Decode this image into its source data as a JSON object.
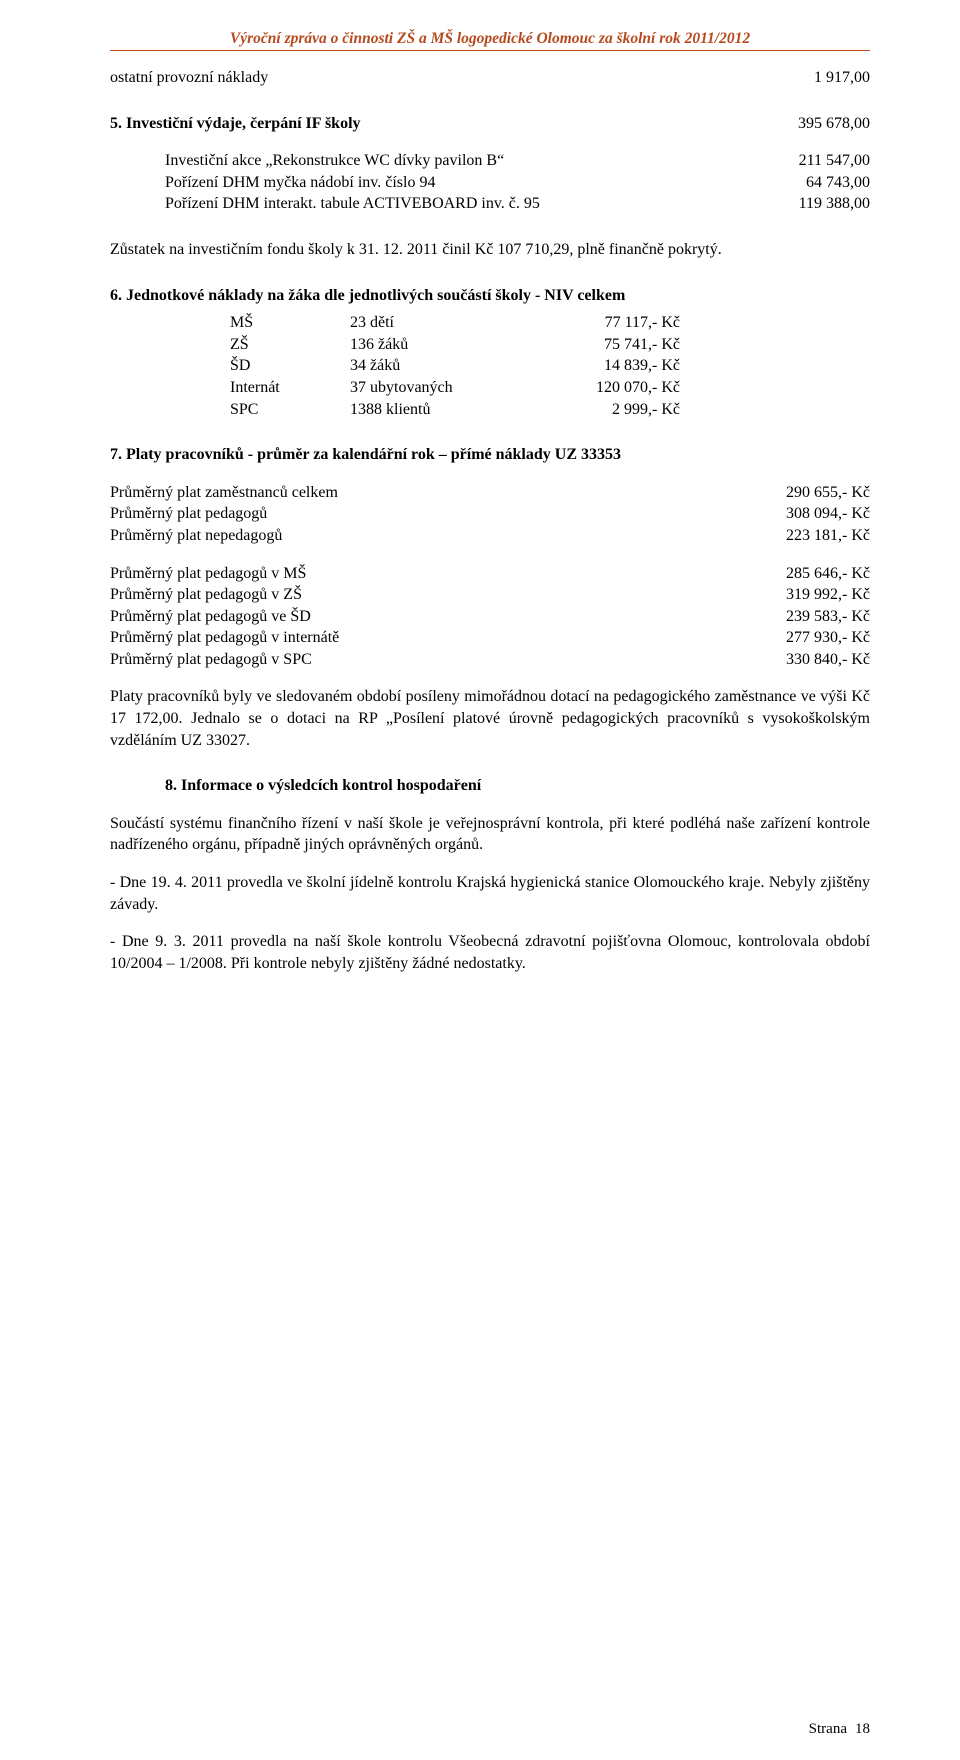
{
  "colors": {
    "accent": "#b54a1e",
    "text": "#000000",
    "bg": "#ffffff"
  },
  "typography": {
    "family": "Times New Roman",
    "base_size_pt": 12
  },
  "header": {
    "title": "Výroční zpráva o činnosti ZŠ a MŠ logopedické Olomouc za školní rok 2011/2012"
  },
  "sec_costs": {
    "label": "ostatní provozní náklady",
    "value": "1 917,00"
  },
  "sec5": {
    "heading": "5. Investiční výdaje, čerpání IF školy",
    "heading_value": "395 678,00",
    "rows": [
      {
        "label": "Investiční akce „Rekonstrukce WC dívky pavilon B“",
        "value": "211 547,00"
      },
      {
        "label": "Pořízení DHM myčka nádobí inv. číslo 94",
        "value": "64 743,00"
      },
      {
        "label": "Pořízení DHM interakt. tabule ACTIVEBOARD inv. č. 95",
        "value": "119 388,00"
      }
    ],
    "note": "Zůstatek na investičním fondu školy k 31. 12. 2011 činil Kč 107 710,29, plně finančně pokrytý."
  },
  "sec6": {
    "heading": "6. Jednotkové náklady na žáka dle jednotlivých součástí školy - NIV celkem",
    "table": {
      "rows": [
        {
          "c1": "MŠ",
          "c2": "23 dětí",
          "c3": "77 117,- Kč"
        },
        {
          "c1": "ZŠ",
          "c2": "136 žáků",
          "c3": "75 741,- Kč"
        },
        {
          "c1": "ŠD",
          "c2": "34 žáků",
          "c3": "14 839,- Kč"
        },
        {
          "c1": "Internát",
          "c2": "37 ubytovaných",
          "c3": "120 070,- Kč"
        },
        {
          "c1": "SPC",
          "c2": "1388 klientů",
          "c3": "2 999,- Kč"
        }
      ]
    }
  },
  "sec7": {
    "heading": "7. Platy pracovníků - průměr za kalendářní rok – přímé náklady UZ 33353",
    "group1": [
      {
        "label": "Průměrný plat zaměstnanců celkem",
        "value": "290 655,- Kč"
      },
      {
        "label": "Průměrný plat pedagogů",
        "value": "308 094,- Kč"
      },
      {
        "label": "Průměrný plat nepedagogů",
        "value": "223 181,- Kč"
      }
    ],
    "group2": [
      {
        "label": "Průměrný plat pedagogů v MŠ",
        "value": "285 646,- Kč"
      },
      {
        "label": "Průměrný plat pedagogů v ZŠ",
        "value": "319 992,- Kč"
      },
      {
        "label": "Průměrný plat pedagogů ve ŠD",
        "value": "239 583,- Kč"
      },
      {
        "label": "Průměrný plat pedagogů v internátě",
        "value": "277 930,- Kč"
      },
      {
        "label": "Průměrný plat pedagogů v SPC",
        "value": "330 840,- Kč"
      }
    ],
    "paragraph": "Platy pracovníků byly ve sledovaném období posíleny mimořádnou dotací na pedagogického zaměstnance ve výši Kč 17 172,00. Jednalo se o dotaci na RP „Posílení platové úrovně pedagogických pracovníků s vysokoškolským vzděláním UZ 33027."
  },
  "sec8": {
    "heading": "8. Informace o výsledcích kontrol hospodaření",
    "p1": "Součástí systému finančního řízení v naší škole je veřejnosprávní kontrola, při které podléhá naše zařízení kontrole nadřízeného orgánu, případně jiných oprávněných orgánů.",
    "p2": "- Dne 19. 4. 2011 provedla ve školní jídelně kontrolu Krajská hygienická stanice Olomouckého kraje. Nebyly zjištěny závady.",
    "p3": "- Dne 9. 3. 2011 provedla na naší škole kontrolu Všeobecná zdravotní pojišťovna Olomouc, kontrolovala období 10/2004 – 1/2008. Při kontrole nebyly zjištěny žádné nedostatky."
  },
  "footer": {
    "label": "Strana",
    "num": "18"
  }
}
